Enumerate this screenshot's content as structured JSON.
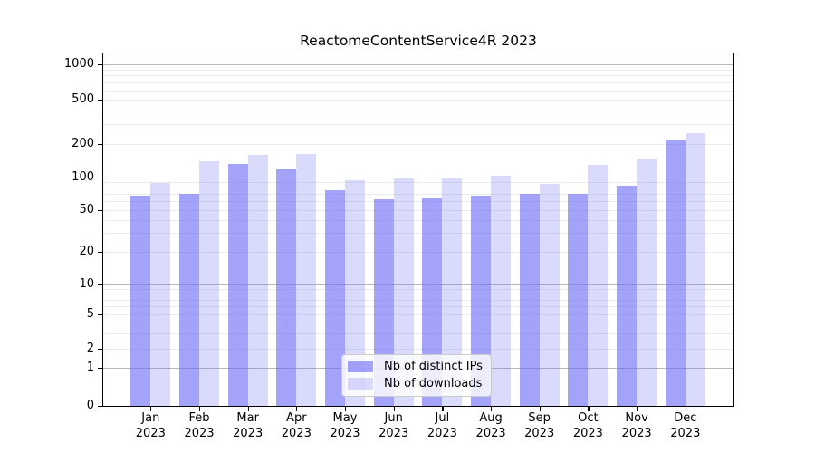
{
  "chart_data": {
    "type": "bar",
    "title": "ReactomeContentService4R 2023",
    "categories": [
      "Jan",
      "Feb",
      "Mar",
      "Apr",
      "May",
      "Jun",
      "Jul",
      "Aug",
      "Sep",
      "Oct",
      "Nov",
      "Dec"
    ],
    "year": "2023",
    "series": [
      {
        "name": "Nb of distinct IPs",
        "color": "#6a6af5",
        "alpha": 0.62,
        "values": [
          67,
          70,
          132,
          121,
          76,
          63,
          65,
          67,
          70,
          70,
          83,
          220
        ]
      },
      {
        "name": "Nb of downloads",
        "color": "#6a6af5",
        "alpha": 0.25,
        "values": [
          89,
          141,
          160,
          162,
          94,
          97,
          100,
          103,
          87,
          131,
          146,
          250
        ]
      }
    ],
    "yscale": "symlog",
    "yticks": [
      0,
      1,
      2,
      5,
      10,
      20,
      50,
      100,
      200,
      500,
      1000
    ],
    "ylim": [
      0,
      1300
    ],
    "xlabel": "",
    "ylabel": "",
    "grid": "both",
    "legend_position": "lower center"
  }
}
